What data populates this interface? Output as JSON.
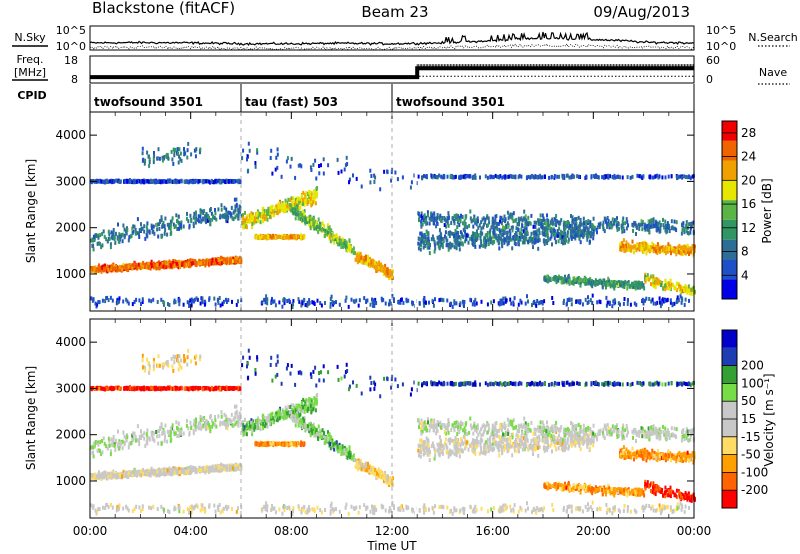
{
  "header": {
    "station": "Blackstone (fitACF)",
    "beam": "Beam 23",
    "date": "09/Aug/2013"
  },
  "summary_panels": {
    "nsky_label": "N.Sky",
    "nsearch_label": "N.Search",
    "noise_ticks": [
      "10^5",
      "10^0"
    ],
    "freq_label_1": "Freq.",
    "freq_label_2": "[MHz]",
    "freq_ticks": [
      "18",
      "8"
    ],
    "nave_label": "Nave",
    "nave_ticks": [
      "60",
      "0"
    ],
    "cpid_label": "CPID"
  },
  "cpid_segments": [
    {
      "label": "twofsound 3501",
      "start_hour": 0,
      "end_hour": 6
    },
    {
      "label": "tau (fast) 503",
      "start_hour": 6,
      "end_hour": 12
    },
    {
      "label": "twofsound 3501",
      "start_hour": 12,
      "end_hour": 24
    }
  ],
  "colors": {
    "power": [
      "#0000e6",
      "#1e50c8",
      "#2d6e96",
      "#329664",
      "#5ab446",
      "#e6e600",
      "#f0a000",
      "#f06400",
      "#f00000"
    ],
    "velocity": [
      "#ff0000",
      "#ff6400",
      "#ffa000",
      "#ffdc64",
      "#c8c8c8",
      "#c8c8c8",
      "#78dc46",
      "#32a032",
      "#1e3cb4",
      "#0000c8"
    ]
  },
  "chart_data": [
    {
      "type": "line",
      "name": "noise",
      "x": [
        0,
        2,
        4,
        6,
        8,
        10,
        12,
        14,
        16,
        18,
        20,
        22,
        24
      ],
      "series": [
        {
          "name": "N.Sky",
          "values": [
            30,
            35,
            30,
            20,
            20,
            25,
            20,
            30,
            80,
            300,
            150,
            40,
            30
          ]
        },
        {
          "name": "N.Search",
          "values": [
            3,
            4,
            3,
            2,
            2,
            2,
            2,
            3,
            5,
            8,
            6,
            4,
            3
          ]
        }
      ],
      "ylim": [
        1,
        100000
      ],
      "ytick_labels": [
        "10^5",
        "10^0"
      ],
      "yscale": "log"
    },
    {
      "type": "line",
      "name": "frequency_nave",
      "x": [
        0,
        6,
        13,
        13,
        24
      ],
      "series": [
        {
          "name": "Freq.",
          "values": [
            10.2,
            10.2,
            10.2,
            13.5,
            13.5
          ]
        },
        {
          "name": "Nave",
          "values": [
            15,
            15,
            15,
            15,
            15
          ]
        }
      ],
      "ylim": [
        8,
        18
      ],
      "ylim_right": [
        0,
        60
      ],
      "ytick_labels": [
        "18",
        "8"
      ],
      "ytick_labels_right": [
        "60",
        "0"
      ]
    },
    {
      "type": "heatmap",
      "name": "power",
      "ylabel": "Slant Range [km]",
      "xlim": [
        0,
        24
      ],
      "ylim": [
        200,
        4500
      ],
      "yticks": [
        1000,
        2000,
        3000,
        4000
      ],
      "colorbar_label": "Power [dB]",
      "colorbar_ticks": [
        4,
        8,
        12,
        16,
        20,
        24,
        28
      ],
      "colorbar_range": [
        0,
        30
      ],
      "grid": false
    },
    {
      "type": "heatmap",
      "name": "velocity",
      "xlabel": "Time UT",
      "ylabel": "Slant Range [km]",
      "xlim": [
        0,
        24
      ],
      "xticks": [
        "00:00",
        "04:00",
        "08:00",
        "12:00",
        "16:00",
        "20:00",
        "00:00"
      ],
      "ylim": [
        200,
        4500
      ],
      "yticks": [
        1000,
        2000,
        3000,
        4000
      ],
      "colorbar_label": "Velocity [m s⁻¹]",
      "colorbar_ticks": [
        -200,
        -100,
        -50,
        -15,
        15,
        50,
        100,
        200
      ],
      "grid": false
    }
  ]
}
